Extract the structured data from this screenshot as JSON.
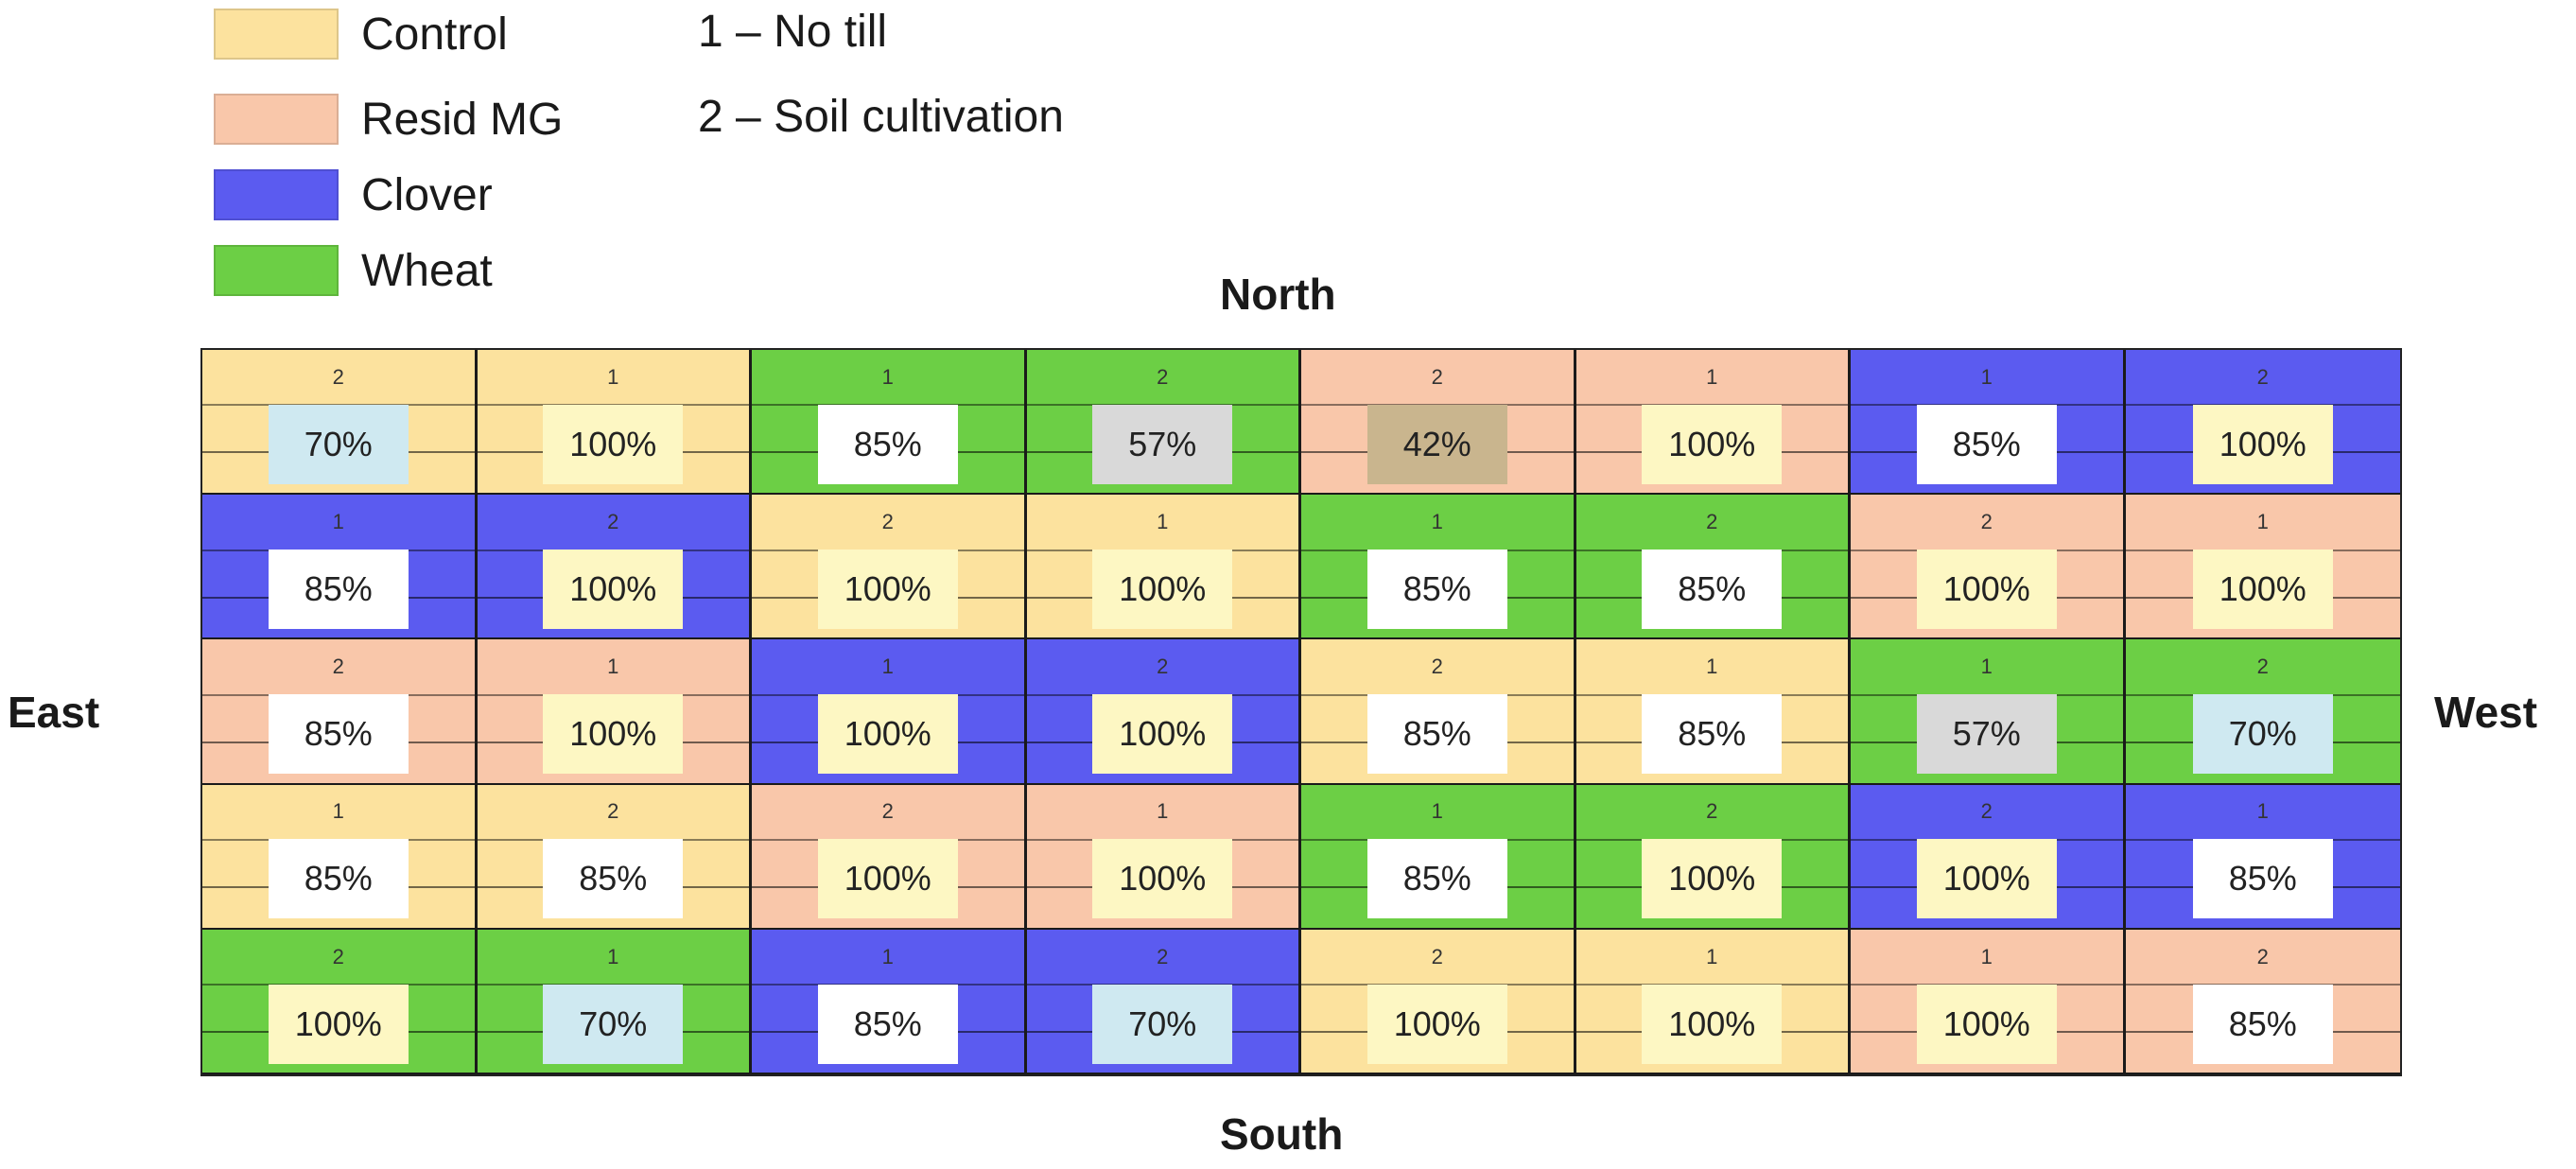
{
  "legend": {
    "items": [
      {
        "label": "Control",
        "color": "#FCE29E"
      },
      {
        "label": "Resid MG",
        "color": "#F9C7AA"
      },
      {
        "label": "Clover",
        "color": "#5B5BF0"
      },
      {
        "label": "Wheat",
        "color": "#6CCF45"
      }
    ]
  },
  "notes": [
    "1 – No till",
    "2 – Soil cultivation"
  ],
  "compass": {
    "north": "North",
    "south": "South",
    "east": "East",
    "west": "West"
  },
  "treatment_colors": {
    "Control": "#FCE29E",
    "Resid MG": "#F9C7AA",
    "Clover": "#5B5BF0",
    "Wheat": "#6CCF45"
  },
  "box_colors": {
    "light-blue": "#CFE9F1",
    "light-yellow": "#FDF7C3",
    "white": "#FFFFFF",
    "gray": "#D9D9D9",
    "tan": "#C9B58E"
  },
  "plots": [
    [
      {
        "treatment": "Control",
        "till": "2",
        "value": "70%",
        "box": "light-blue"
      },
      {
        "treatment": "Control",
        "till": "1",
        "value": "100%",
        "box": "light-yellow"
      },
      {
        "treatment": "Wheat",
        "till": "1",
        "value": "85%",
        "box": "white"
      },
      {
        "treatment": "Wheat",
        "till": "2",
        "value": "57%",
        "box": "gray"
      },
      {
        "treatment": "Resid MG",
        "till": "2",
        "value": "42%",
        "box": "tan"
      },
      {
        "treatment": "Resid MG",
        "till": "1",
        "value": "100%",
        "box": "light-yellow"
      },
      {
        "treatment": "Clover",
        "till": "1",
        "value": "85%",
        "box": "white"
      },
      {
        "treatment": "Clover",
        "till": "2",
        "value": "100%",
        "box": "light-yellow"
      }
    ],
    [
      {
        "treatment": "Clover",
        "till": "1",
        "value": "85%",
        "box": "white"
      },
      {
        "treatment": "Clover",
        "till": "2",
        "value": "100%",
        "box": "light-yellow"
      },
      {
        "treatment": "Control",
        "till": "2",
        "value": "100%",
        "box": "light-yellow"
      },
      {
        "treatment": "Control",
        "till": "1",
        "value": "100%",
        "box": "light-yellow"
      },
      {
        "treatment": "Wheat",
        "till": "1",
        "value": "85%",
        "box": "white"
      },
      {
        "treatment": "Wheat",
        "till": "2",
        "value": "85%",
        "box": "white"
      },
      {
        "treatment": "Resid MG",
        "till": "2",
        "value": "100%",
        "box": "light-yellow"
      },
      {
        "treatment": "Resid MG",
        "till": "1",
        "value": "100%",
        "box": "light-yellow"
      }
    ],
    [
      {
        "treatment": "Resid MG",
        "till": "2",
        "value": "85%",
        "box": "white"
      },
      {
        "treatment": "Resid MG",
        "till": "1",
        "value": "100%",
        "box": "light-yellow"
      },
      {
        "treatment": "Clover",
        "till": "1",
        "value": "100%",
        "box": "light-yellow"
      },
      {
        "treatment": "Clover",
        "till": "2",
        "value": "100%",
        "box": "light-yellow"
      },
      {
        "treatment": "Control",
        "till": "2",
        "value": "85%",
        "box": "white"
      },
      {
        "treatment": "Control",
        "till": "1",
        "value": "85%",
        "box": "white"
      },
      {
        "treatment": "Wheat",
        "till": "1",
        "value": "57%",
        "box": "gray"
      },
      {
        "treatment": "Wheat",
        "till": "2",
        "value": "70%",
        "box": "light-blue"
      }
    ],
    [
      {
        "treatment": "Control",
        "till": "1",
        "value": "85%",
        "box": "white"
      },
      {
        "treatment": "Control",
        "till": "2",
        "value": "85%",
        "box": "white"
      },
      {
        "treatment": "Resid MG",
        "till": "2",
        "value": "100%",
        "box": "light-yellow"
      },
      {
        "treatment": "Resid MG",
        "till": "1",
        "value": "100%",
        "box": "light-yellow"
      },
      {
        "treatment": "Wheat",
        "till": "1",
        "value": "85%",
        "box": "white"
      },
      {
        "treatment": "Wheat",
        "till": "2",
        "value": "100%",
        "box": "light-yellow"
      },
      {
        "treatment": "Clover",
        "till": "2",
        "value": "100%",
        "box": "light-yellow"
      },
      {
        "treatment": "Clover",
        "till": "1",
        "value": "85%",
        "box": "white"
      }
    ],
    [
      {
        "treatment": "Wheat",
        "till": "2",
        "value": "100%",
        "box": "light-yellow"
      },
      {
        "treatment": "Wheat",
        "till": "1",
        "value": "70%",
        "box": "light-blue"
      },
      {
        "treatment": "Clover",
        "till": "1",
        "value": "85%",
        "box": "white"
      },
      {
        "treatment": "Clover",
        "till": "2",
        "value": "70%",
        "box": "light-blue"
      },
      {
        "treatment": "Control",
        "till": "2",
        "value": "100%",
        "box": "light-yellow"
      },
      {
        "treatment": "Control",
        "till": "1",
        "value": "100%",
        "box": "light-yellow"
      },
      {
        "treatment": "Resid MG",
        "till": "1",
        "value": "100%",
        "box": "light-yellow"
      },
      {
        "treatment": "Resid MG",
        "till": "2",
        "value": "85%",
        "box": "white"
      }
    ]
  ]
}
